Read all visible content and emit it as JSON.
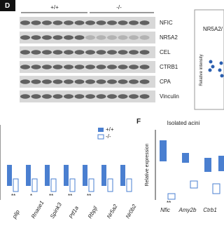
{
  "panel_d": {
    "label": "D",
    "groups": [
      "+/+",
      "-/-"
    ],
    "rows": [
      "NFIC",
      "NR5A2",
      "CEL",
      "CTRB1",
      "CPA",
      "Vinculin"
    ],
    "side_title": "NR5A2/",
    "side_ylabel": "Relative intensity"
  },
  "panel_e": {
    "legend": [
      "+/+",
      "-/-"
    ],
    "genes": [
      "plip",
      "Rnase1",
      "Spink3",
      "Ptf1a",
      "Rbpjl",
      "Nr5a2",
      "Nr0b2"
    ],
    "stars": [
      "**",
      "*",
      "**",
      "**",
      "**"
    ]
  },
  "panel_f": {
    "label": "F",
    "title": "Isolated acini",
    "ylabel": "Relative expression",
    "genes": [
      "Nfic",
      "Amy2b",
      "Ctrb1"
    ],
    "stars": [
      "**"
    ]
  }
}
